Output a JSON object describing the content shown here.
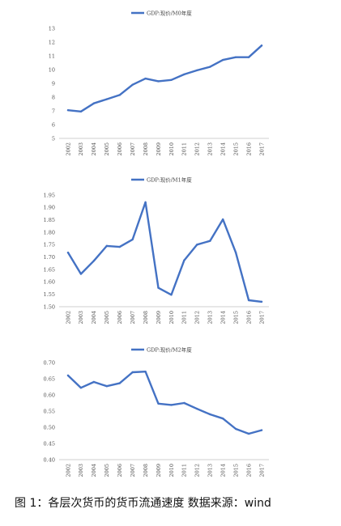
{
  "chart_data": [
    {
      "type": "line",
      "legend": "GDP:现价/M0年度",
      "legend_position": "top",
      "grid": false,
      "color": "#4472C4",
      "x": [
        "2002",
        "2003",
        "2004",
        "2005",
        "2006",
        "2007",
        "2008",
        "2009",
        "2010",
        "2011",
        "2012",
        "2013",
        "2014",
        "2015",
        "2016",
        "2017"
      ],
      "values": [
        7.05,
        6.95,
        7.55,
        7.85,
        8.15,
        8.9,
        9.35,
        9.15,
        9.25,
        9.65,
        9.95,
        10.2,
        10.7,
        10.9,
        10.9,
        11.75
      ],
      "ylim": [
        5,
        13
      ],
      "yticks": [
        "5",
        "6",
        "7",
        "8",
        "9",
        "10",
        "11",
        "12",
        "13"
      ]
    },
    {
      "type": "line",
      "legend": "GDP:现价/M1年度",
      "legend_position": "top",
      "grid": false,
      "color": "#4472C4",
      "x": [
        "2002",
        "2003",
        "2004",
        "2005",
        "2006",
        "2007",
        "2008",
        "2009",
        "2010",
        "2011",
        "2012",
        "2013",
        "2014",
        "2015",
        "2016",
        "2017"
      ],
      "values": [
        1.718,
        1.632,
        1.685,
        1.745,
        1.741,
        1.771,
        1.921,
        1.576,
        1.548,
        1.687,
        1.75,
        1.765,
        1.852,
        1.718,
        1.526,
        1.52
      ],
      "ylim": [
        1.5,
        1.95
      ],
      "yticks": [
        "1.50",
        "1.55",
        "1.60",
        "1.65",
        "1.70",
        "1.75",
        "1.80",
        "1.85",
        "1.90",
        "1.95"
      ]
    },
    {
      "type": "line",
      "legend": "GDP:现价/M2年度",
      "legend_position": "top",
      "grid": false,
      "color": "#4472C4",
      "x": [
        "2002",
        "2003",
        "2004",
        "2005",
        "2006",
        "2007",
        "2008",
        "2009",
        "2010",
        "2011",
        "2012",
        "2013",
        "2014",
        "2015",
        "2016",
        "2017"
      ],
      "values": [
        0.66,
        0.622,
        0.64,
        0.627,
        0.636,
        0.67,
        0.672,
        0.573,
        0.569,
        0.575,
        0.557,
        0.54,
        0.527,
        0.495,
        0.48,
        0.491
      ],
      "ylim": [
        0.4,
        0.7
      ],
      "yticks": [
        "0.40",
        "0.45",
        "0.50",
        "0.55",
        "0.60",
        "0.65",
        "0.70"
      ]
    }
  ],
  "caption": "图 1：各层次货币的货币流通速度  数据来源：wind"
}
